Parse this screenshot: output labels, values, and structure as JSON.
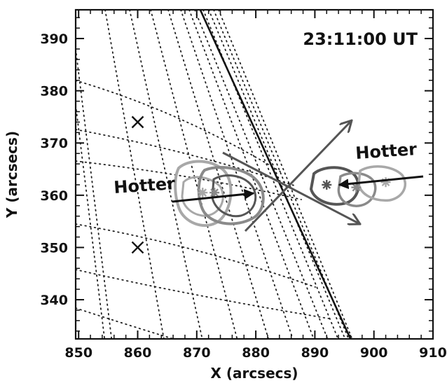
{
  "chart_data": {
    "type": "scatter",
    "title": "",
    "time_label": "23:11:00 UT",
    "xlabel": "X (arcsecs)",
    "ylabel": "Y (arcsecs)",
    "xlim": [
      849.5,
      910
    ],
    "ylim": [
      332.5,
      395.5
    ],
    "x_ticks": [
      850,
      860,
      870,
      880,
      890,
      900,
      910
    ],
    "y_ticks": [
      340,
      350,
      360,
      370,
      380,
      390
    ],
    "grid": false,
    "x_markers": [
      {
        "x": 860,
        "y": 374
      },
      {
        "x": 860,
        "y": 350
      }
    ],
    "source_centroids": [
      {
        "x": 871,
        "y": 360.5
      },
      {
        "x": 873,
        "y": 360.5
      },
      {
        "x": 892,
        "y": 362
      },
      {
        "x": 897,
        "y": 361.5
      },
      {
        "x": 902,
        "y": 362.5
      }
    ],
    "annotations": [
      {
        "text": "Hotter",
        "side": "left"
      },
      {
        "text": "Hotter",
        "side": "right"
      }
    ],
    "colors": {
      "ink": "#111111",
      "contour_light": "#a8a8a8",
      "contour_mid": "#8a8a8a",
      "contour_dark": "#555555",
      "vector": "#555555"
    }
  }
}
